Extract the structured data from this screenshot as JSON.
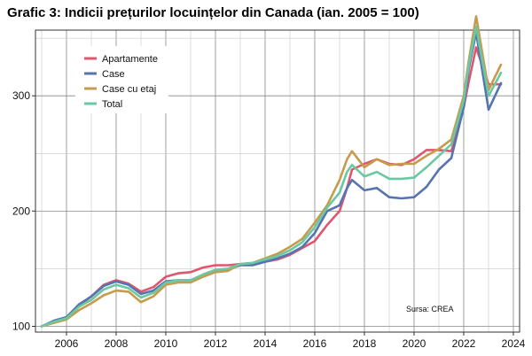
{
  "chart_data": {
    "type": "line",
    "title": "Grafic 3: Indicii prețurilor locuințelor din Canada (ian. 2005 = 100)",
    "xlim": [
      2004.75,
      2024.25
    ],
    "ylim": [
      95,
      357
    ],
    "x_ticks": [
      2006,
      2008,
      2010,
      2012,
      2014,
      2016,
      2018,
      2020,
      2022,
      2024
    ],
    "y_ticks": [
      100,
      200,
      300
    ],
    "grid": true,
    "legend_position": "top-left",
    "source": "Sursa: CREA",
    "x": [
      2005.0,
      2005.5,
      2006.0,
      2006.5,
      2007.0,
      2007.5,
      2008.0,
      2008.5,
      2009.0,
      2009.5,
      2010.0,
      2010.5,
      2011.0,
      2011.5,
      2012.0,
      2012.5,
      2013.0,
      2013.5,
      2014.0,
      2014.5,
      2015.0,
      2015.5,
      2016.0,
      2016.5,
      2017.0,
      2017.3,
      2017.5,
      2018.0,
      2018.5,
      2019.0,
      2019.5,
      2020.0,
      2020.5,
      2021.0,
      2021.5,
      2022.0,
      2022.2,
      2022.5,
      2023.0,
      2023.5
    ],
    "series": [
      {
        "name": "Apartamente",
        "color": "#e0566c",
        "values": [
          100,
          104,
          108,
          118,
          126,
          136,
          140,
          137,
          130,
          134,
          143,
          146,
          147,
          151,
          153,
          153,
          154,
          155,
          156,
          158,
          162,
          168,
          174,
          188,
          200,
          220,
          236,
          241,
          245,
          241,
          240,
          245,
          253,
          253,
          252,
          290,
          312,
          342,
          310,
          310
        ]
      },
      {
        "name": "Case",
        "color": "#5674b0",
        "values": [
          100,
          105,
          108,
          119,
          126,
          135,
          139,
          136,
          128,
          131,
          139,
          140,
          140,
          144,
          148,
          149,
          153,
          153,
          156,
          159,
          163,
          169,
          181,
          200,
          205,
          220,
          227,
          218,
          220,
          212,
          211,
          212,
          221,
          236,
          246,
          290,
          323,
          355,
          288,
          311
        ]
      },
      {
        "name": "Case cu etaj",
        "color": "#c79b4e",
        "values": [
          100,
          103,
          106,
          114,
          120,
          127,
          131,
          130,
          121,
          126,
          136,
          138,
          138,
          143,
          147,
          148,
          154,
          155,
          159,
          163,
          169,
          176,
          190,
          205,
          227,
          245,
          252,
          238,
          245,
          240,
          241,
          241,
          248,
          254,
          262,
          300,
          330,
          369,
          305,
          327
        ]
      },
      {
        "name": "Total",
        "color": "#6ac8a2",
        "values": [
          100,
          104,
          107,
          117,
          123,
          132,
          136,
          133,
          125,
          129,
          138,
          140,
          140,
          145,
          149,
          150,
          154,
          155,
          158,
          161,
          166,
          173,
          186,
          203,
          216,
          234,
          240,
          230,
          234,
          228,
          228,
          229,
          238,
          248,
          258,
          296,
          326,
          360,
          300,
          320
        ]
      }
    ]
  }
}
